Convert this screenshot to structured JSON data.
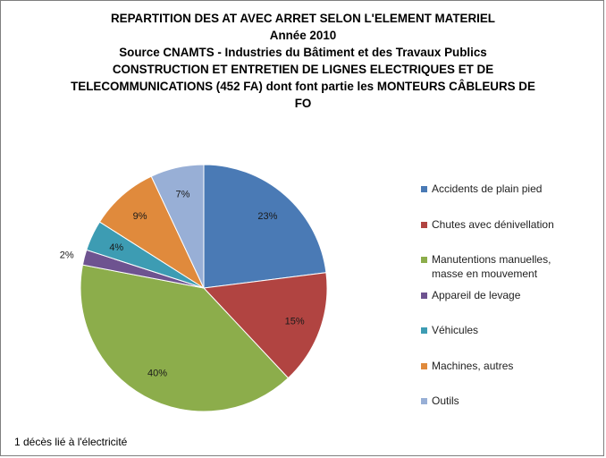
{
  "chart_data": {
    "type": "pie",
    "title_lines": [
      "REPARTITION DES AT AVEC ARRET SELON L'ELEMENT MATERIEL",
      "Année 2010",
      "Source CNAMTS - Industries du Bâtiment et des Travaux Publics",
      "CONSTRUCTION ET ENTRETIEN DE LIGNES ELECTRIQUES ET DE",
      "TELECOMMUNICATIONS (452 FA) dont font partie les MONTEURS CÂBLEURS DE",
      "FO"
    ],
    "slices": [
      {
        "name": "Accidents de plain pied",
        "legend_lines": [
          "Accidents de plain pied"
        ],
        "value": 23,
        "label": "23%",
        "color": "#4a7ab5"
      },
      {
        "name": "Chutes avec dénivellation",
        "legend_lines": [
          "Chutes avec dénivellation"
        ],
        "value": 15,
        "label": "15%",
        "color": "#b14441"
      },
      {
        "name": "Manutentions manuelles, masse en mouvement",
        "legend_lines": [
          "Manutentions manuelles,",
          "masse en mouvement"
        ],
        "value": 40,
        "label": "40%",
        "color": "#8cad4b"
      },
      {
        "name": "Appareil de levage",
        "legend_lines": [
          "Appareil de levage"
        ],
        "value": 2,
        "label": "2%",
        "color": "#6e5390"
      },
      {
        "name": "Véhicules",
        "legend_lines": [
          "Véhicules"
        ],
        "value": 4,
        "label": "4%",
        "color": "#3d9cb3"
      },
      {
        "name": "Machines, autres",
        "legend_lines": [
          "Machines, autres"
        ],
        "value": 9,
        "label": "9%",
        "color": "#e08a3c"
      },
      {
        "name": "Outils",
        "legend_lines": [
          "Outils"
        ],
        "value": 7,
        "label": "7%",
        "color": "#98afd6"
      }
    ],
    "legend_position": "right",
    "start_angle": "12 o'clock",
    "direction": "clockwise"
  },
  "footnote": "1 décès lié à l'électricité"
}
